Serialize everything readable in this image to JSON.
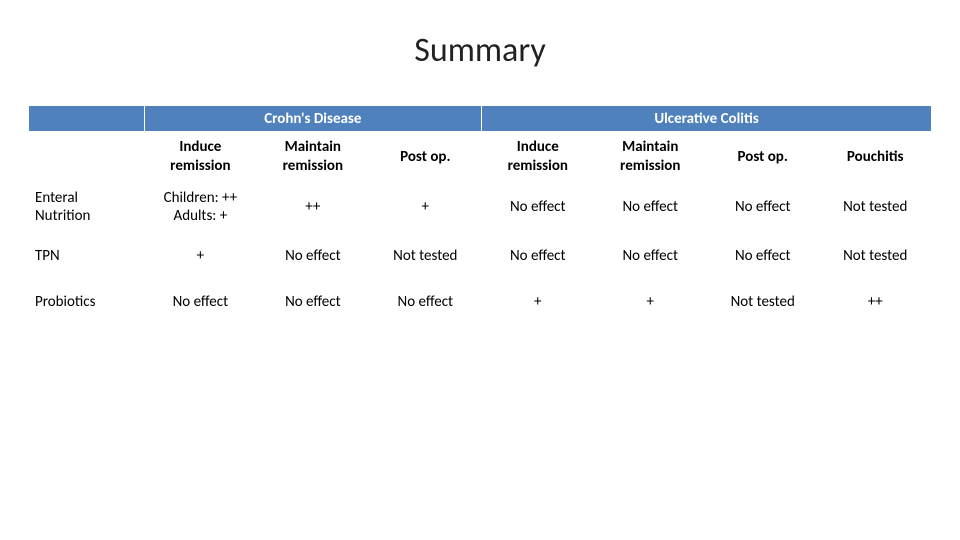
{
  "title": "Summary",
  "colors": {
    "header_bg": "#4f81bd",
    "header_fg": "#ffffff",
    "cell_bg": "#ffffff",
    "border": "#ffffff",
    "text": "#000000"
  },
  "groups": {
    "g1": "Crohn's Disease",
    "g2": "Ulcerative Colitis"
  },
  "subheaders": {
    "c1": "Induce remission",
    "c2": "Maintain remission",
    "c3": "Post op.",
    "c4": "Induce remission",
    "c5": "Maintain remission",
    "c6": "Post op.",
    "c7": "Pouchitis"
  },
  "rows": {
    "r1": {
      "label": "Enteral Nutrition",
      "c1": "Children: ++\nAdults: +",
      "c2": "++",
      "c3": "+",
      "c4": "No effect",
      "c5": "No effect",
      "c6": "No effect",
      "c7": "Not tested"
    },
    "r2": {
      "label": "TPN",
      "c1": "+",
      "c2": "No effect",
      "c3": "Not tested",
      "c4": "No effect",
      "c5": "No effect",
      "c6": "No effect",
      "c7": "Not tested"
    },
    "r3": {
      "label": "Probiotics",
      "c1": "No effect",
      "c2": "No effect",
      "c3": "No effect",
      "c4": "+",
      "c5": "+",
      "c6": "Not tested",
      "c7": "++"
    }
  }
}
